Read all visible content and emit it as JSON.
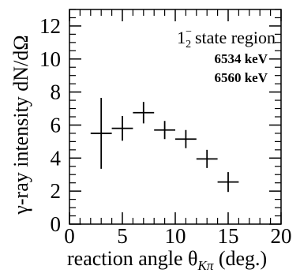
{
  "chart_data": {
    "type": "scatter",
    "title": "",
    "xlabel": "reaction angle θ",
    "xlabel_subscript": "Kπ",
    "xlabel_suffix": " (deg.)",
    "ylabel": "γ-ray intensity dN/dΩ",
    "xlim": [
      0,
      20
    ],
    "ylim": [
      0,
      13
    ],
    "xticks": [
      0,
      5,
      10,
      15,
      20
    ],
    "yticks": [
      0,
      2,
      4,
      6,
      8,
      10,
      12
    ],
    "x_minor_step": 1,
    "y_minor_step": 0.5,
    "grid": false,
    "series": [
      {
        "x": [
          3,
          5,
          7,
          9,
          11,
          13,
          15
        ],
        "y": [
          5.5,
          5.8,
          6.75,
          5.7,
          5.15,
          3.95,
          2.55
        ],
        "x_err": [
          1,
          1,
          1,
          1,
          1,
          1,
          1
        ],
        "y_err": [
          2.15,
          0.75,
          0.65,
          0.55,
          0.55,
          0.55,
          0.6
        ],
        "marker_color": "#000000"
      }
    ],
    "annotations": {
      "state_main": "1",
      "state_sup": "−",
      "state_sub": "2",
      "state_text": "state",
      "state_region": "region",
      "energy_1": "6534 keV",
      "energy_2": "6560 keV"
    }
  }
}
